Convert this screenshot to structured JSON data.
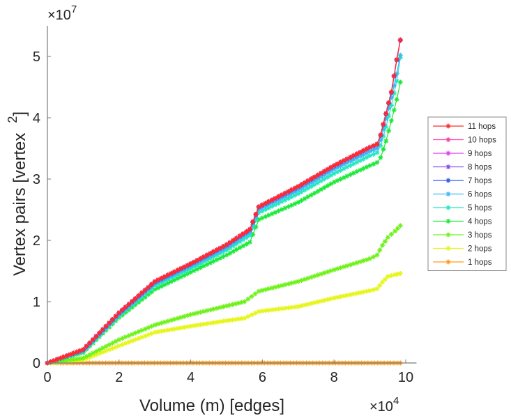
{
  "chart_data": {
    "type": "line",
    "xlabel": "Volume (m) [edges]",
    "ylabel": "Vertex pairs [vertex",
    "ylabel_superscript": "2",
    "ylabel_close": "]",
    "x_exponent_label": "×10",
    "x_exponent": "4",
    "y_exponent_label": "×10",
    "y_exponent": "7",
    "xlim": [
      0,
      10.3
    ],
    "ylim": [
      0,
      5.5
    ],
    "xticks": [
      0,
      2,
      4,
      6,
      8,
      10
    ],
    "xtick_labels": [
      "0",
      "2",
      "4",
      "6",
      "8",
      "10"
    ],
    "yticks": [
      0,
      1,
      2,
      3,
      4,
      5
    ],
    "ytick_labels": [
      "0",
      "1",
      "2",
      "3",
      "4",
      "5"
    ],
    "grid": false,
    "legend_position": "right",
    "marker": "asterisk",
    "series": [
      {
        "name": "11 hops",
        "color": "#ff2a2a",
        "x": [
          0,
          1,
          2,
          3,
          4,
          5,
          5.65,
          5.9,
          7,
          8,
          9,
          9.2,
          9.3,
          9.45,
          9.6,
          9.75,
          9.85
        ],
        "y": [
          0,
          0.22,
          0.82,
          1.33,
          1.62,
          1.93,
          2.18,
          2.55,
          2.88,
          3.22,
          3.52,
          3.57,
          3.72,
          4.07,
          4.42,
          4.95,
          5.27
        ]
      },
      {
        "name": "10 hops",
        "color": "#ff3fa0",
        "x": [
          0,
          1,
          2,
          3,
          4,
          5,
          5.65,
          5.9,
          7,
          8,
          9,
          9.2,
          9.3,
          9.45,
          9.6,
          9.75,
          9.85
        ],
        "y": [
          0,
          0.22,
          0.82,
          1.33,
          1.62,
          1.93,
          2.18,
          2.55,
          2.88,
          3.22,
          3.52,
          3.57,
          3.72,
          4.07,
          4.42,
          4.95,
          5.27
        ]
      },
      {
        "name": "9 hops",
        "color": "#e040f0",
        "x": [
          0,
          1,
          2,
          3,
          4,
          5,
          5.65,
          5.9,
          7,
          8,
          9,
          9.2,
          9.3,
          9.45,
          9.6,
          9.75,
          9.85
        ],
        "y": [
          0,
          0.22,
          0.82,
          1.33,
          1.62,
          1.93,
          2.18,
          2.55,
          2.88,
          3.22,
          3.52,
          3.57,
          3.72,
          4.07,
          4.42,
          4.95,
          5.27
        ]
      },
      {
        "name": "8 hops",
        "color": "#8a4cf0",
        "x": [
          0,
          1,
          2,
          3,
          4,
          5,
          5.65,
          5.9,
          7,
          8,
          9,
          9.2,
          9.3,
          9.45,
          9.6,
          9.75,
          9.85
        ],
        "y": [
          0,
          0.22,
          0.82,
          1.33,
          1.62,
          1.93,
          2.18,
          2.55,
          2.88,
          3.22,
          3.52,
          3.57,
          3.72,
          4.07,
          4.42,
          4.95,
          5.27
        ]
      },
      {
        "name": "7 hops",
        "color": "#2f5af5",
        "x": [
          0,
          1,
          2,
          3,
          4,
          5,
          5.65,
          5.9,
          7,
          8,
          9,
          9.2,
          9.3,
          9.45,
          9.6,
          9.75,
          9.85
        ],
        "y": [
          0,
          0.21,
          0.81,
          1.32,
          1.61,
          1.92,
          2.17,
          2.54,
          2.87,
          3.21,
          3.51,
          3.56,
          3.71,
          4.06,
          4.41,
          4.94,
          5.26
        ]
      },
      {
        "name": "6 hops",
        "color": "#3cb8f5",
        "x": [
          0,
          1,
          2,
          3,
          4,
          5,
          5.65,
          5.9,
          7,
          8,
          9,
          9.2,
          9.3,
          9.45,
          9.6,
          9.75,
          9.85
        ],
        "y": [
          0,
          0.2,
          0.79,
          1.29,
          1.58,
          1.88,
          2.13,
          2.5,
          2.82,
          3.16,
          3.45,
          3.5,
          3.64,
          3.98,
          4.33,
          4.72,
          5.02
        ]
      },
      {
        "name": "5 hops",
        "color": "#25e8c0",
        "x": [
          0,
          1,
          2,
          3,
          4,
          5,
          5.65,
          5.9,
          7,
          8,
          9,
          9.2,
          9.3,
          9.45,
          9.6,
          9.75,
          9.85
        ],
        "y": [
          0,
          0.19,
          0.77,
          1.26,
          1.54,
          1.84,
          2.08,
          2.45,
          2.76,
          3.09,
          3.38,
          3.43,
          3.55,
          3.85,
          4.2,
          4.6,
          4.98
        ]
      },
      {
        "name": "4 hops",
        "color": "#1ee83a",
        "x": [
          0,
          1,
          2,
          3,
          4,
          5,
          5.65,
          5.9,
          7,
          8,
          9,
          9.2,
          9.3,
          9.45,
          9.6,
          9.75,
          9.85
        ],
        "y": [
          0,
          0.17,
          0.74,
          1.2,
          1.48,
          1.76,
          1.97,
          2.34,
          2.62,
          2.95,
          3.22,
          3.27,
          3.35,
          3.62,
          3.95,
          4.3,
          4.58
        ]
      },
      {
        "name": "3 hops",
        "color": "#6ef21a",
        "x": [
          0,
          1,
          2,
          3,
          4,
          5,
          5.5,
          5.9,
          7,
          8,
          9,
          9.2,
          9.35,
          9.5,
          9.7,
          9.85
        ],
        "y": [
          0,
          0.08,
          0.38,
          0.62,
          0.79,
          0.93,
          1.0,
          1.17,
          1.33,
          1.52,
          1.7,
          1.76,
          1.92,
          2.05,
          2.15,
          2.24
        ]
      },
      {
        "name": "2 hops",
        "color": "#e6f51a",
        "x": [
          0,
          1,
          2,
          3,
          4,
          5,
          5.5,
          5.9,
          7,
          8,
          9,
          9.2,
          9.35,
          9.5,
          9.7,
          9.85
        ],
        "y": [
          0,
          0.05,
          0.28,
          0.5,
          0.6,
          0.69,
          0.73,
          0.84,
          0.92,
          1.06,
          1.18,
          1.21,
          1.32,
          1.41,
          1.44,
          1.46
        ]
      },
      {
        "name": "1 hops",
        "color": "#ff9a1a",
        "x": [
          0,
          9.85
        ],
        "y": [
          0,
          0
        ]
      }
    ]
  }
}
